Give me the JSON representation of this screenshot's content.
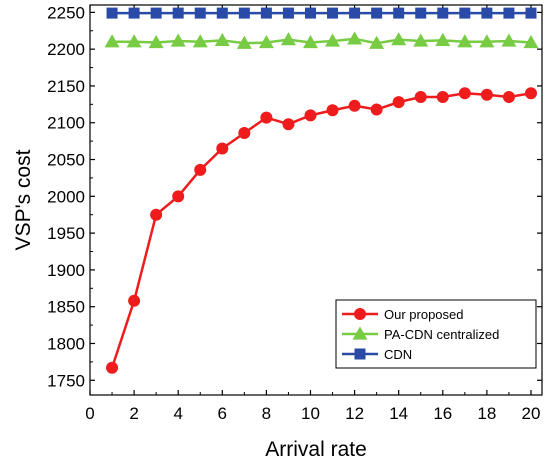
{
  "chart_data": {
    "type": "line",
    "xlabel": "Arrival rate",
    "ylabel": "VSP's cost",
    "xlim": [
      0,
      20.5
    ],
    "ylim": [
      1730,
      2260
    ],
    "xticks": [
      0,
      2,
      4,
      6,
      8,
      10,
      12,
      14,
      16,
      18,
      20
    ],
    "yticks": [
      1750,
      1800,
      1850,
      1900,
      1950,
      2000,
      2050,
      2100,
      2150,
      2200,
      2250
    ],
    "x": [
      1,
      2,
      3,
      4,
      5,
      6,
      7,
      8,
      9,
      10,
      11,
      12,
      13,
      14,
      15,
      16,
      17,
      18,
      19,
      20
    ],
    "grid": false,
    "legend_position": "bottom-right",
    "series": [
      {
        "name": "Our proposed",
        "color": "#ee1c1c",
        "marker": "circle",
        "values": [
          1767,
          1858,
          1975,
          2000,
          2036,
          2065,
          2086,
          2107,
          2098,
          2110,
          2117,
          2123,
          2118,
          2128,
          2135,
          2135,
          2140,
          2138,
          2135,
          2140
        ]
      },
      {
        "name": "PA-CDN centralized",
        "color": "#77cc44",
        "marker": "triangle",
        "values": [
          2210,
          2210,
          2209,
          2211,
          2210,
          2212,
          2208,
          2209,
          2213,
          2209,
          2211,
          2214,
          2208,
          2213,
          2211,
          2212,
          2210,
          2210,
          2211,
          2209
        ]
      },
      {
        "name": "CDN",
        "color": "#2a4aa8",
        "marker": "square",
        "values": [
          2249,
          2249,
          2249,
          2249,
          2249,
          2249,
          2249,
          2249,
          2249,
          2249,
          2249,
          2249,
          2249,
          2249,
          2249,
          2249,
          2249,
          2249,
          2249,
          2249
        ]
      }
    ]
  }
}
